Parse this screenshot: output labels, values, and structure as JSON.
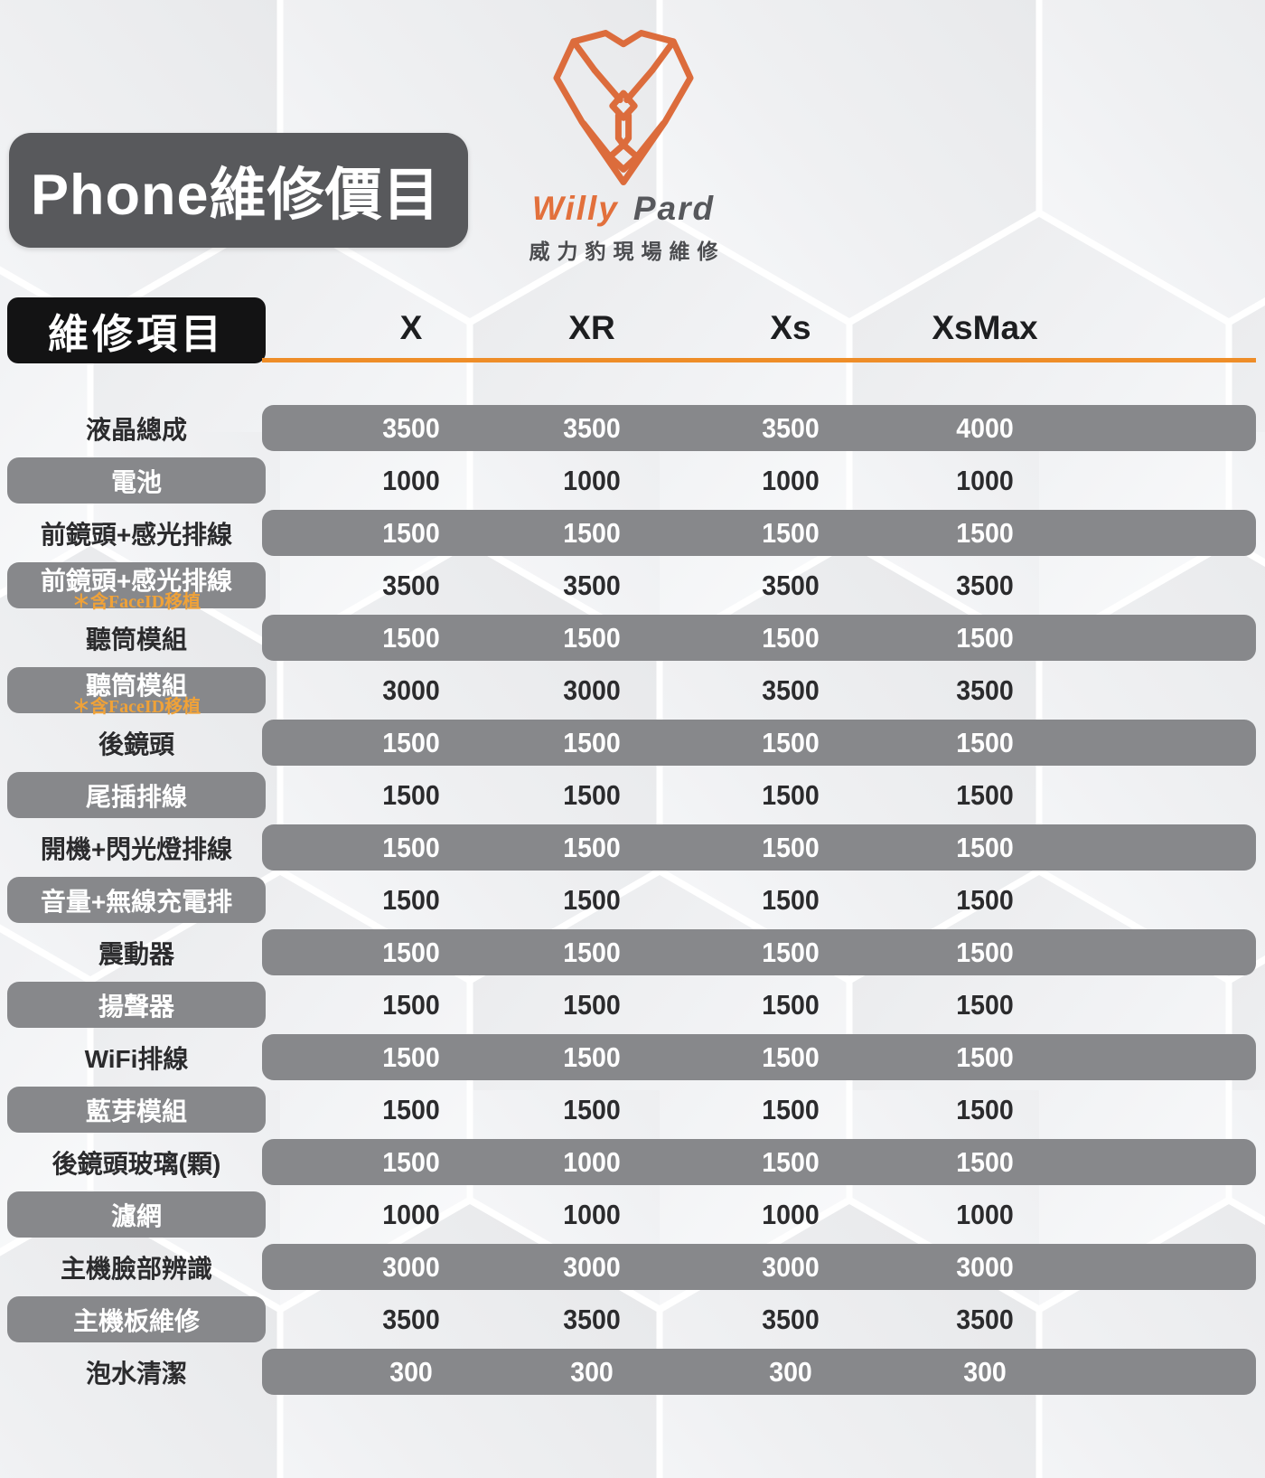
{
  "header": {
    "title": "Phone維修價目"
  },
  "logo": {
    "brand_first": "Willy",
    "brand_second": "Pard",
    "subtitle": "威力豹現場維修"
  },
  "table": {
    "corner_label": "維修項目",
    "columns": [
      "X",
      "XR",
      "Xs",
      "XsMax"
    ],
    "rows": [
      {
        "label": "液晶總成",
        "note": "",
        "values": [
          "3500",
          "3500",
          "3500",
          "4000"
        ],
        "bar": "values"
      },
      {
        "label": "電池",
        "note": "",
        "values": [
          "1000",
          "1000",
          "1000",
          "1000"
        ],
        "bar": "label"
      },
      {
        "label": "前鏡頭+感光排線",
        "note": "",
        "values": [
          "1500",
          "1500",
          "1500",
          "1500"
        ],
        "bar": "values"
      },
      {
        "label": "前鏡頭+感光排線",
        "note": "＊含FaceID移植",
        "values": [
          "3500",
          "3500",
          "3500",
          "3500"
        ],
        "bar": "label"
      },
      {
        "label": "聽筒模組",
        "note": "",
        "values": [
          "1500",
          "1500",
          "1500",
          "1500"
        ],
        "bar": "values"
      },
      {
        "label": "聽筒模組",
        "note": "＊含FaceID移植",
        "values": [
          "3000",
          "3000",
          "3500",
          "3500"
        ],
        "bar": "label"
      },
      {
        "label": "後鏡頭",
        "note": "",
        "values": [
          "1500",
          "1500",
          "1500",
          "1500"
        ],
        "bar": "values"
      },
      {
        "label": "尾插排線",
        "note": "",
        "values": [
          "1500",
          "1500",
          "1500",
          "1500"
        ],
        "bar": "label"
      },
      {
        "label": "開機+閃光燈排線",
        "note": "",
        "values": [
          "1500",
          "1500",
          "1500",
          "1500"
        ],
        "bar": "values"
      },
      {
        "label": "音量+無線充電排",
        "note": "",
        "values": [
          "1500",
          "1500",
          "1500",
          "1500"
        ],
        "bar": "label"
      },
      {
        "label": "震動器",
        "note": "",
        "values": [
          "1500",
          "1500",
          "1500",
          "1500"
        ],
        "bar": "values"
      },
      {
        "label": "揚聲器",
        "note": "",
        "values": [
          "1500",
          "1500",
          "1500",
          "1500"
        ],
        "bar": "label"
      },
      {
        "label": "WiFi排線",
        "note": "",
        "values": [
          "1500",
          "1500",
          "1500",
          "1500"
        ],
        "bar": "values"
      },
      {
        "label": "藍芽模組",
        "note": "",
        "values": [
          "1500",
          "1500",
          "1500",
          "1500"
        ],
        "bar": "label"
      },
      {
        "label": "後鏡頭玻璃(顆)",
        "note": "",
        "values": [
          "1500",
          "1000",
          "1500",
          "1500"
        ],
        "bar": "values"
      },
      {
        "label": "濾網",
        "note": "",
        "values": [
          "1000",
          "1000",
          "1000",
          "1000"
        ],
        "bar": "label"
      },
      {
        "label": "主機臉部辨識",
        "note": "",
        "values": [
          "3000",
          "3000",
          "3000",
          "3000"
        ],
        "bar": "values"
      },
      {
        "label": "主機板維修",
        "note": "",
        "values": [
          "3500",
          "3500",
          "3500",
          "3500"
        ],
        "bar": "label"
      },
      {
        "label": "泡水清潔",
        "note": "",
        "values": [
          "300",
          "300",
          "300",
          "300"
        ],
        "bar": "values"
      }
    ]
  },
  "colors": {
    "accent_orange": "#EE8D28",
    "logo_orange": "#E2703C",
    "note_orange": "#F0A238",
    "bar_gray": "#87888B",
    "title_box_gray": "#58595C",
    "corner_box_black": "#131314",
    "text_dark": "#2B2B2D"
  }
}
